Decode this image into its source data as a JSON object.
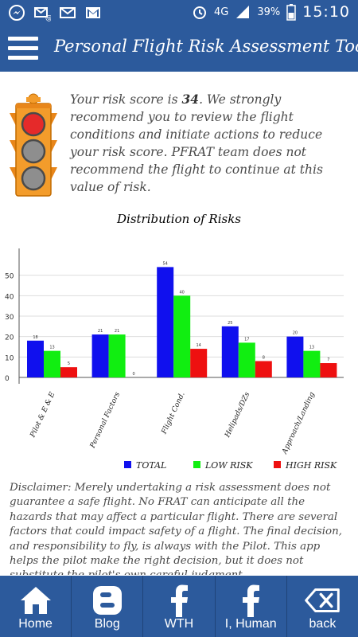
{
  "status_bar": {
    "network": "4G",
    "battery": "39%",
    "time": "15:10",
    "icons": [
      "messenger-icon",
      "email-icon",
      "mail-icon",
      "gmail-icon",
      "alarm-icon",
      "signal-icon",
      "battery-icon"
    ]
  },
  "header": {
    "title": "Personal Flight Risk Assessment Tool",
    "menu_icon": "hamburger-menu-icon"
  },
  "risk": {
    "prefix": "Your risk score is ",
    "score": "34",
    "message": ". We strongly recommend you to review the flight conditions and initiate actions to reduce your risk score. PFRAT team does not recommend the flight to continue at this value of risk.",
    "traffic_light_state": "red"
  },
  "chart_data": {
    "type": "bar",
    "title": "Distribution of Risks",
    "categories": [
      "Pilot & E & E",
      "Personal Factors",
      "Flight Cond.",
      "Helipads/DZs",
      "Approach/Landing"
    ],
    "series": [
      {
        "name": "TOTAL",
        "color": "#1010ee",
        "values": [
          18,
          21,
          54,
          25,
          20
        ]
      },
      {
        "name": "LOW RISK",
        "color": "#11ee11",
        "values": [
          13,
          21,
          40,
          17,
          13
        ]
      },
      {
        "name": "HIGH RISK",
        "color": "#ee1010",
        "values": [
          5,
          0,
          14,
          8,
          7
        ]
      }
    ],
    "ylim": [
      0,
      60
    ],
    "yticks": [
      0,
      10,
      20,
      30,
      40,
      50
    ],
    "grid": true,
    "legend": "bottom"
  },
  "disclaimer": "Disclaimer: Merely undertaking a risk assessment does not guarantee a safe flight. No FRAT can anticipate all the hazards that may affect a particular flight. There are several factors that could impact safety of a flight. The final decision, and responsibility to fly, is always with the Pilot. This app helps the pilot make the right decision, but it does not substitute the pilot's own careful judgment.",
  "nav": [
    {
      "label": "Home",
      "icon": "home-icon"
    },
    {
      "label": "Blog",
      "icon": "blogger-icon"
    },
    {
      "label": "WTH",
      "icon": "facebook-icon"
    },
    {
      "label": "I, Human",
      "icon": "facebook-icon"
    },
    {
      "label": "back",
      "icon": "backspace-icon"
    }
  ]
}
